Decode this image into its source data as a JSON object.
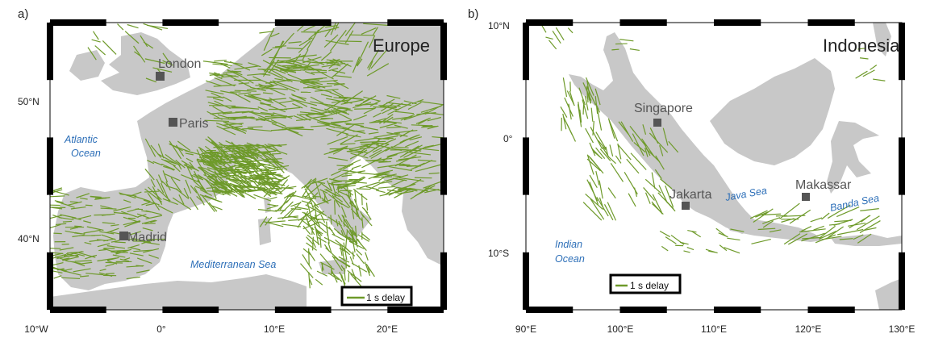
{
  "colors": {
    "land": "#c8c8c8",
    "ocean": "#ffffff",
    "split": "#6e9a2a",
    "city": "#555555",
    "water_label": "#2d6fb8"
  },
  "panel_a": {
    "label": "a)",
    "title": "Europe",
    "cities": [
      {
        "name": "London"
      },
      {
        "name": "Paris"
      },
      {
        "name": "Madrid"
      }
    ],
    "water": [
      "Atlantic",
      "Ocean",
      "Mediterranean Sea"
    ],
    "yticks": [
      "50°N",
      "40°N"
    ],
    "xticks": [
      "10°W",
      "0°",
      "10°E",
      "20°E"
    ],
    "legend": "1 s delay"
  },
  "panel_b": {
    "label": "b)",
    "title": "Indonesia",
    "cities": [
      {
        "name": "Singapore"
      },
      {
        "name": "Jakarta"
      },
      {
        "name": "Makassar"
      }
    ],
    "water": [
      "Java Sea",
      "Banda Sea",
      "Indian",
      "Ocean"
    ],
    "yticks": [
      "10°N",
      "0°",
      "10°S"
    ],
    "xticks": [
      "90°E",
      "100°E",
      "110°E",
      "120°E",
      "130°E"
    ],
    "legend": "1 s delay"
  }
}
